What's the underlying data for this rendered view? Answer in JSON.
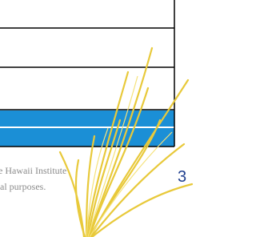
{
  "footer": {
    "line1": "e Hawaii Institute",
    "line2": "al purposes.",
    "page_number": "3"
  }
}
